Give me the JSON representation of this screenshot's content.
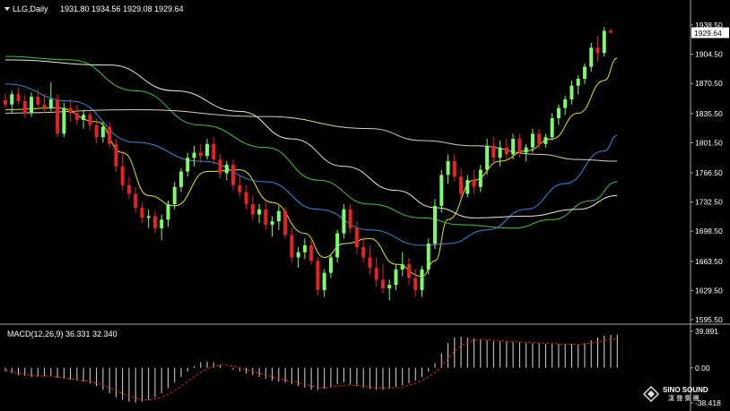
{
  "header": {
    "symbol_label": "LLG,Daily",
    "ohlc": "1931.80 1934.56 1929.08 1929.64"
  },
  "price_panel": {
    "ticks": [
      "1938.50",
      "1904.50",
      "1870.50",
      "1835.50",
      "1801.50",
      "1766.50",
      "1732.50",
      "1698.50",
      "1663.50",
      "1629.50",
      "1595.50"
    ],
    "current_price": "1929.64"
  },
  "macd_panel": {
    "label": "MACD(12,26,9) 36.331 32.340",
    "ticks": [
      "39.891",
      "0.00",
      "-38.418"
    ]
  },
  "watermark": {
    "brand_en": "SINO SOUND",
    "brand_cn": "漢 聲 集 團"
  },
  "colors": {
    "background": "#000000",
    "bull": "#7CFC6C",
    "bear": "#E52323",
    "ma_fast": "#E6E600",
    "ma_blue": "#2F8FE0",
    "ma_green": "#3CC83C",
    "ma_white": "#E8E8E8",
    "ma_tan": "#D8CFA8",
    "macd_signal": "#E02020",
    "macd_hist": "#D8D8D8",
    "axis": "#A8A8A8",
    "text": "#FFFFFF"
  },
  "chart_data": {
    "type": "candlestick",
    "title": "LLG,Daily",
    "ylim": [
      1595.5,
      1938.5
    ],
    "candles": [
      {
        "o": 1851,
        "h": 1859,
        "l": 1842,
        "c": 1846
      },
      {
        "o": 1846,
        "h": 1862,
        "l": 1836,
        "c": 1858
      },
      {
        "o": 1858,
        "h": 1866,
        "l": 1846,
        "c": 1850
      },
      {
        "o": 1850,
        "h": 1857,
        "l": 1830,
        "c": 1836
      },
      {
        "o": 1836,
        "h": 1860,
        "l": 1832,
        "c": 1855
      },
      {
        "o": 1855,
        "h": 1864,
        "l": 1840,
        "c": 1846
      },
      {
        "o": 1846,
        "h": 1858,
        "l": 1836,
        "c": 1842
      },
      {
        "o": 1842,
        "h": 1872,
        "l": 1838,
        "c": 1852
      },
      {
        "o": 1852,
        "h": 1858,
        "l": 1808,
        "c": 1812
      },
      {
        "o": 1812,
        "h": 1848,
        "l": 1808,
        "c": 1842
      },
      {
        "o": 1842,
        "h": 1852,
        "l": 1826,
        "c": 1836
      },
      {
        "o": 1836,
        "h": 1846,
        "l": 1822,
        "c": 1828
      },
      {
        "o": 1828,
        "h": 1840,
        "l": 1818,
        "c": 1834
      },
      {
        "o": 1834,
        "h": 1838,
        "l": 1816,
        "c": 1822
      },
      {
        "o": 1822,
        "h": 1830,
        "l": 1800,
        "c": 1808
      },
      {
        "o": 1808,
        "h": 1826,
        "l": 1802,
        "c": 1820
      },
      {
        "o": 1820,
        "h": 1826,
        "l": 1796,
        "c": 1800
      },
      {
        "o": 1800,
        "h": 1806,
        "l": 1768,
        "c": 1774
      },
      {
        "o": 1774,
        "h": 1792,
        "l": 1746,
        "c": 1752
      },
      {
        "o": 1752,
        "h": 1762,
        "l": 1736,
        "c": 1742
      },
      {
        "o": 1742,
        "h": 1750,
        "l": 1720,
        "c": 1726
      },
      {
        "o": 1726,
        "h": 1732,
        "l": 1708,
        "c": 1714
      },
      {
        "o": 1714,
        "h": 1724,
        "l": 1702,
        "c": 1716
      },
      {
        "o": 1716,
        "h": 1722,
        "l": 1696,
        "c": 1702
      },
      {
        "o": 1702,
        "h": 1718,
        "l": 1688,
        "c": 1712
      },
      {
        "o": 1712,
        "h": 1734,
        "l": 1704,
        "c": 1730
      },
      {
        "o": 1730,
        "h": 1756,
        "l": 1724,
        "c": 1750
      },
      {
        "o": 1750,
        "h": 1772,
        "l": 1744,
        "c": 1768
      },
      {
        "o": 1768,
        "h": 1790,
        "l": 1762,
        "c": 1784
      },
      {
        "o": 1784,
        "h": 1798,
        "l": 1774,
        "c": 1790
      },
      {
        "o": 1790,
        "h": 1800,
        "l": 1778,
        "c": 1786
      },
      {
        "o": 1786,
        "h": 1806,
        "l": 1782,
        "c": 1800
      },
      {
        "o": 1800,
        "h": 1808,
        "l": 1776,
        "c": 1782
      },
      {
        "o": 1782,
        "h": 1788,
        "l": 1760,
        "c": 1766
      },
      {
        "o": 1766,
        "h": 1780,
        "l": 1758,
        "c": 1776
      },
      {
        "o": 1776,
        "h": 1782,
        "l": 1746,
        "c": 1752
      },
      {
        "o": 1752,
        "h": 1764,
        "l": 1738,
        "c": 1744
      },
      {
        "o": 1744,
        "h": 1752,
        "l": 1724,
        "c": 1730
      },
      {
        "o": 1730,
        "h": 1740,
        "l": 1712,
        "c": 1718
      },
      {
        "o": 1718,
        "h": 1730,
        "l": 1708,
        "c": 1724
      },
      {
        "o": 1724,
        "h": 1732,
        "l": 1700,
        "c": 1706
      },
      {
        "o": 1706,
        "h": 1716,
        "l": 1692,
        "c": 1710
      },
      {
        "o": 1710,
        "h": 1728,
        "l": 1700,
        "c": 1722
      },
      {
        "o": 1722,
        "h": 1726,
        "l": 1690,
        "c": 1694
      },
      {
        "o": 1694,
        "h": 1702,
        "l": 1662,
        "c": 1668
      },
      {
        "o": 1668,
        "h": 1680,
        "l": 1656,
        "c": 1674
      },
      {
        "o": 1674,
        "h": 1690,
        "l": 1666,
        "c": 1682
      },
      {
        "o": 1682,
        "h": 1688,
        "l": 1660,
        "c": 1664
      },
      {
        "o": 1664,
        "h": 1668,
        "l": 1624,
        "c": 1630
      },
      {
        "o": 1630,
        "h": 1654,
        "l": 1622,
        "c": 1650
      },
      {
        "o": 1650,
        "h": 1672,
        "l": 1644,
        "c": 1668
      },
      {
        "o": 1668,
        "h": 1700,
        "l": 1662,
        "c": 1696
      },
      {
        "o": 1696,
        "h": 1730,
        "l": 1690,
        "c": 1724
      },
      {
        "o": 1724,
        "h": 1730,
        "l": 1696,
        "c": 1702
      },
      {
        "o": 1702,
        "h": 1710,
        "l": 1672,
        "c": 1680
      },
      {
        "o": 1680,
        "h": 1692,
        "l": 1662,
        "c": 1668
      },
      {
        "o": 1668,
        "h": 1682,
        "l": 1648,
        "c": 1656
      },
      {
        "o": 1656,
        "h": 1668,
        "l": 1634,
        "c": 1642
      },
      {
        "o": 1642,
        "h": 1660,
        "l": 1626,
        "c": 1632
      },
      {
        "o": 1632,
        "h": 1642,
        "l": 1618,
        "c": 1636
      },
      {
        "o": 1636,
        "h": 1660,
        "l": 1630,
        "c": 1654
      },
      {
        "o": 1654,
        "h": 1674,
        "l": 1646,
        "c": 1660
      },
      {
        "o": 1660,
        "h": 1668,
        "l": 1636,
        "c": 1644
      },
      {
        "o": 1644,
        "h": 1654,
        "l": 1622,
        "c": 1630
      },
      {
        "o": 1630,
        "h": 1658,
        "l": 1622,
        "c": 1654
      },
      {
        "o": 1654,
        "h": 1690,
        "l": 1648,
        "c": 1684
      },
      {
        "o": 1684,
        "h": 1736,
        "l": 1678,
        "c": 1728
      },
      {
        "o": 1728,
        "h": 1770,
        "l": 1720,
        "c": 1764
      },
      {
        "o": 1764,
        "h": 1788,
        "l": 1754,
        "c": 1780
      },
      {
        "o": 1780,
        "h": 1788,
        "l": 1756,
        "c": 1762
      },
      {
        "o": 1762,
        "h": 1772,
        "l": 1736,
        "c": 1742
      },
      {
        "o": 1742,
        "h": 1764,
        "l": 1738,
        "c": 1758
      },
      {
        "o": 1758,
        "h": 1770,
        "l": 1742,
        "c": 1750
      },
      {
        "o": 1750,
        "h": 1776,
        "l": 1744,
        "c": 1770
      },
      {
        "o": 1770,
        "h": 1806,
        "l": 1764,
        "c": 1798
      },
      {
        "o": 1798,
        "h": 1808,
        "l": 1778,
        "c": 1784
      },
      {
        "o": 1784,
        "h": 1804,
        "l": 1774,
        "c": 1796
      },
      {
        "o": 1796,
        "h": 1806,
        "l": 1780,
        "c": 1788
      },
      {
        "o": 1788,
        "h": 1812,
        "l": 1782,
        "c": 1806
      },
      {
        "o": 1806,
        "h": 1812,
        "l": 1784,
        "c": 1790
      },
      {
        "o": 1790,
        "h": 1800,
        "l": 1780,
        "c": 1796
      },
      {
        "o": 1796,
        "h": 1818,
        "l": 1790,
        "c": 1812
      },
      {
        "o": 1812,
        "h": 1818,
        "l": 1794,
        "c": 1800
      },
      {
        "o": 1800,
        "h": 1812,
        "l": 1796,
        "c": 1808
      },
      {
        "o": 1808,
        "h": 1836,
        "l": 1804,
        "c": 1830
      },
      {
        "o": 1830,
        "h": 1846,
        "l": 1822,
        "c": 1842
      },
      {
        "o": 1842,
        "h": 1856,
        "l": 1834,
        "c": 1852
      },
      {
        "o": 1852,
        "h": 1874,
        "l": 1846,
        "c": 1868
      },
      {
        "o": 1868,
        "h": 1880,
        "l": 1858,
        "c": 1876
      },
      {
        "o": 1876,
        "h": 1894,
        "l": 1870,
        "c": 1890
      },
      {
        "o": 1890,
        "h": 1918,
        "l": 1884,
        "c": 1912
      },
      {
        "o": 1912,
        "h": 1926,
        "l": 1896,
        "c": 1906
      },
      {
        "o": 1906,
        "h": 1936,
        "l": 1902,
        "c": 1931.8
      },
      {
        "o": 1931.8,
        "h": 1934.56,
        "l": 1929.08,
        "c": 1929.64
      }
    ],
    "moving_averages": [
      {
        "color_key": "ma_fast",
        "points": [
          [
            0,
            1840
          ],
          [
            8,
            1842
          ],
          [
            14,
            1826
          ],
          [
            18,
            1790
          ],
          [
            22,
            1740
          ],
          [
            26,
            1728
          ],
          [
            31,
            1768
          ],
          [
            36,
            1770
          ],
          [
            41,
            1732
          ],
          [
            46,
            1696
          ],
          [
            49,
            1668
          ],
          [
            52,
            1684
          ],
          [
            56,
            1690
          ],
          [
            60,
            1660
          ],
          [
            64,
            1646
          ],
          [
            66,
            1664
          ],
          [
            68,
            1712
          ],
          [
            72,
            1758
          ],
          [
            76,
            1780
          ],
          [
            80,
            1792
          ],
          [
            84,
            1806
          ],
          [
            88,
            1836
          ],
          [
            92,
            1874
          ],
          [
            94,
            1900
          ]
        ]
      },
      {
        "color_key": "ma_blue",
        "points": [
          [
            0,
            1870
          ],
          [
            10,
            1850
          ],
          [
            20,
            1802
          ],
          [
            30,
            1780
          ],
          [
            40,
            1756
          ],
          [
            48,
            1724
          ],
          [
            56,
            1700
          ],
          [
            64,
            1682
          ],
          [
            68,
            1684
          ],
          [
            74,
            1700
          ],
          [
            80,
            1724
          ],
          [
            86,
            1754
          ],
          [
            92,
            1792
          ],
          [
            94,
            1810
          ]
        ]
      },
      {
        "color_key": "ma_green",
        "points": [
          [
            0,
            1902
          ],
          [
            10,
            1898
          ],
          [
            20,
            1862
          ],
          [
            30,
            1822
          ],
          [
            40,
            1796
          ],
          [
            48,
            1758
          ],
          [
            56,
            1730
          ],
          [
            64,
            1714
          ],
          [
            70,
            1706
          ],
          [
            78,
            1702
          ],
          [
            84,
            1712
          ],
          [
            90,
            1734
          ],
          [
            94,
            1756
          ]
        ]
      },
      {
        "color_key": "ma_white",
        "points": [
          [
            0,
            1898
          ],
          [
            16,
            1892
          ],
          [
            26,
            1862
          ],
          [
            36,
            1838
          ],
          [
            44,
            1806
          ],
          [
            52,
            1774
          ],
          [
            60,
            1746
          ],
          [
            66,
            1726
          ],
          [
            72,
            1714
          ],
          [
            80,
            1716
          ],
          [
            88,
            1724
          ],
          [
            94,
            1740
          ]
        ]
      },
      {
        "color_key": "ma_tan",
        "points": [
          [
            0,
            1836
          ],
          [
            20,
            1840
          ],
          [
            40,
            1832
          ],
          [
            56,
            1818
          ],
          [
            64,
            1804
          ],
          [
            72,
            1798
          ],
          [
            82,
            1788
          ],
          [
            88,
            1782
          ],
          [
            94,
            1780
          ]
        ]
      }
    ],
    "macd": {
      "ylim": [
        -38.418,
        39.891
      ],
      "histogram": [
        -4,
        -6,
        -8,
        -9,
        -10,
        -10,
        -9,
        -9,
        -11,
        -12,
        -13,
        -14,
        -15,
        -17,
        -20,
        -24,
        -28,
        -32,
        -35,
        -37,
        -38,
        -37,
        -35,
        -32,
        -28,
        -22,
        -16,
        -10,
        -4,
        2,
        6,
        7,
        6,
        3,
        0,
        -2,
        -4,
        -6,
        -8,
        -10,
        -12,
        -14,
        -15,
        -16,
        -18,
        -20,
        -22,
        -24,
        -24,
        -23,
        -21,
        -18,
        -16,
        -18,
        -20,
        -22,
        -23,
        -24,
        -24,
        -23,
        -21,
        -19,
        -17,
        -14,
        -10,
        -4,
        5,
        16,
        27,
        33,
        34,
        33,
        32,
        31,
        30,
        29,
        29,
        29,
        28,
        28,
        27,
        27,
        27,
        26,
        26,
        26,
        26,
        26,
        25,
        27,
        30,
        33,
        35,
        36,
        36.3
      ],
      "signal": [
        -2,
        -4,
        -6,
        -7,
        -8,
        -9,
        -9,
        -9,
        -10,
        -11,
        -12,
        -13,
        -14,
        -15,
        -17,
        -19,
        -22,
        -25,
        -28,
        -31,
        -33,
        -35,
        -35,
        -34,
        -32,
        -29,
        -25,
        -20,
        -15,
        -10,
        -5,
        -1,
        2,
        3,
        3,
        2,
        0,
        -2,
        -4,
        -6,
        -8,
        -10,
        -12,
        -13,
        -15,
        -16,
        -18,
        -20,
        -21,
        -22,
        -21,
        -20,
        -19,
        -19,
        -19,
        -20,
        -21,
        -22,
        -22,
        -22,
        -22,
        -21,
        -19,
        -17,
        -14,
        -10,
        -5,
        2,
        10,
        18,
        24,
        28,
        30,
        31,
        31,
        30,
        30,
        29,
        29,
        28,
        28,
        28,
        27,
        27,
        27,
        26,
        26,
        26,
        26,
        26,
        27,
        28,
        30,
        31,
        32.3
      ]
    }
  }
}
